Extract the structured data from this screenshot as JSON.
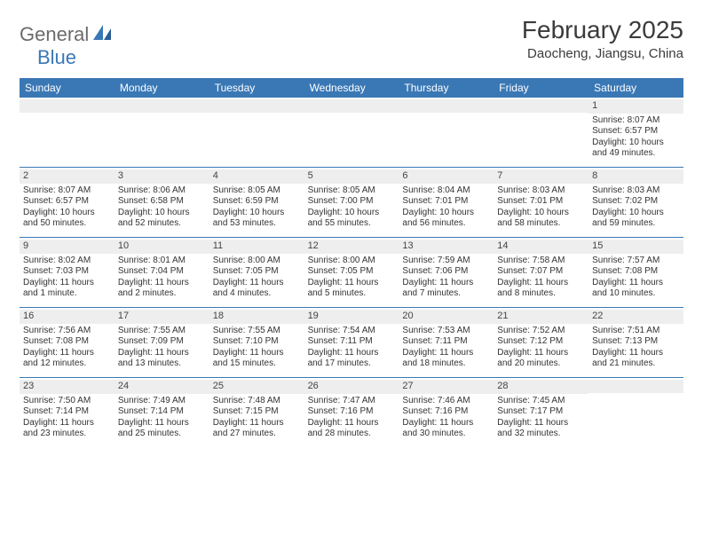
{
  "logo": {
    "text_gray": "General",
    "text_blue": "Blue"
  },
  "title": "February 2025",
  "location": "Daocheng, Jiangsu, China",
  "colors": {
    "header_bg": "#3a78b5",
    "header_text": "#ffffff",
    "daynum_bg": "#eeeeee",
    "rule": "#3a78b5",
    "body_text": "#333333",
    "logo_gray": "#6b6b6b",
    "logo_blue": "#3a78b5"
  },
  "day_names": [
    "Sunday",
    "Monday",
    "Tuesday",
    "Wednesday",
    "Thursday",
    "Friday",
    "Saturday"
  ],
  "weeks": [
    [
      {
        "day": "",
        "sunrise": "",
        "sunset": "",
        "daylight1": "",
        "daylight2": ""
      },
      {
        "day": "",
        "sunrise": "",
        "sunset": "",
        "daylight1": "",
        "daylight2": ""
      },
      {
        "day": "",
        "sunrise": "",
        "sunset": "",
        "daylight1": "",
        "daylight2": ""
      },
      {
        "day": "",
        "sunrise": "",
        "sunset": "",
        "daylight1": "",
        "daylight2": ""
      },
      {
        "day": "",
        "sunrise": "",
        "sunset": "",
        "daylight1": "",
        "daylight2": ""
      },
      {
        "day": "",
        "sunrise": "",
        "sunset": "",
        "daylight1": "",
        "daylight2": ""
      },
      {
        "day": "1",
        "sunrise": "Sunrise: 8:07 AM",
        "sunset": "Sunset: 6:57 PM",
        "daylight1": "Daylight: 10 hours",
        "daylight2": "and 49 minutes."
      }
    ],
    [
      {
        "day": "2",
        "sunrise": "Sunrise: 8:07 AM",
        "sunset": "Sunset: 6:57 PM",
        "daylight1": "Daylight: 10 hours",
        "daylight2": "and 50 minutes."
      },
      {
        "day": "3",
        "sunrise": "Sunrise: 8:06 AM",
        "sunset": "Sunset: 6:58 PM",
        "daylight1": "Daylight: 10 hours",
        "daylight2": "and 52 minutes."
      },
      {
        "day": "4",
        "sunrise": "Sunrise: 8:05 AM",
        "sunset": "Sunset: 6:59 PM",
        "daylight1": "Daylight: 10 hours",
        "daylight2": "and 53 minutes."
      },
      {
        "day": "5",
        "sunrise": "Sunrise: 8:05 AM",
        "sunset": "Sunset: 7:00 PM",
        "daylight1": "Daylight: 10 hours",
        "daylight2": "and 55 minutes."
      },
      {
        "day": "6",
        "sunrise": "Sunrise: 8:04 AM",
        "sunset": "Sunset: 7:01 PM",
        "daylight1": "Daylight: 10 hours",
        "daylight2": "and 56 minutes."
      },
      {
        "day": "7",
        "sunrise": "Sunrise: 8:03 AM",
        "sunset": "Sunset: 7:01 PM",
        "daylight1": "Daylight: 10 hours",
        "daylight2": "and 58 minutes."
      },
      {
        "day": "8",
        "sunrise": "Sunrise: 8:03 AM",
        "sunset": "Sunset: 7:02 PM",
        "daylight1": "Daylight: 10 hours",
        "daylight2": "and 59 minutes."
      }
    ],
    [
      {
        "day": "9",
        "sunrise": "Sunrise: 8:02 AM",
        "sunset": "Sunset: 7:03 PM",
        "daylight1": "Daylight: 11 hours",
        "daylight2": "and 1 minute."
      },
      {
        "day": "10",
        "sunrise": "Sunrise: 8:01 AM",
        "sunset": "Sunset: 7:04 PM",
        "daylight1": "Daylight: 11 hours",
        "daylight2": "and 2 minutes."
      },
      {
        "day": "11",
        "sunrise": "Sunrise: 8:00 AM",
        "sunset": "Sunset: 7:05 PM",
        "daylight1": "Daylight: 11 hours",
        "daylight2": "and 4 minutes."
      },
      {
        "day": "12",
        "sunrise": "Sunrise: 8:00 AM",
        "sunset": "Sunset: 7:05 PM",
        "daylight1": "Daylight: 11 hours",
        "daylight2": "and 5 minutes."
      },
      {
        "day": "13",
        "sunrise": "Sunrise: 7:59 AM",
        "sunset": "Sunset: 7:06 PM",
        "daylight1": "Daylight: 11 hours",
        "daylight2": "and 7 minutes."
      },
      {
        "day": "14",
        "sunrise": "Sunrise: 7:58 AM",
        "sunset": "Sunset: 7:07 PM",
        "daylight1": "Daylight: 11 hours",
        "daylight2": "and 8 minutes."
      },
      {
        "day": "15",
        "sunrise": "Sunrise: 7:57 AM",
        "sunset": "Sunset: 7:08 PM",
        "daylight1": "Daylight: 11 hours",
        "daylight2": "and 10 minutes."
      }
    ],
    [
      {
        "day": "16",
        "sunrise": "Sunrise: 7:56 AM",
        "sunset": "Sunset: 7:08 PM",
        "daylight1": "Daylight: 11 hours",
        "daylight2": "and 12 minutes."
      },
      {
        "day": "17",
        "sunrise": "Sunrise: 7:55 AM",
        "sunset": "Sunset: 7:09 PM",
        "daylight1": "Daylight: 11 hours",
        "daylight2": "and 13 minutes."
      },
      {
        "day": "18",
        "sunrise": "Sunrise: 7:55 AM",
        "sunset": "Sunset: 7:10 PM",
        "daylight1": "Daylight: 11 hours",
        "daylight2": "and 15 minutes."
      },
      {
        "day": "19",
        "sunrise": "Sunrise: 7:54 AM",
        "sunset": "Sunset: 7:11 PM",
        "daylight1": "Daylight: 11 hours",
        "daylight2": "and 17 minutes."
      },
      {
        "day": "20",
        "sunrise": "Sunrise: 7:53 AM",
        "sunset": "Sunset: 7:11 PM",
        "daylight1": "Daylight: 11 hours",
        "daylight2": "and 18 minutes."
      },
      {
        "day": "21",
        "sunrise": "Sunrise: 7:52 AM",
        "sunset": "Sunset: 7:12 PM",
        "daylight1": "Daylight: 11 hours",
        "daylight2": "and 20 minutes."
      },
      {
        "day": "22",
        "sunrise": "Sunrise: 7:51 AM",
        "sunset": "Sunset: 7:13 PM",
        "daylight1": "Daylight: 11 hours",
        "daylight2": "and 21 minutes."
      }
    ],
    [
      {
        "day": "23",
        "sunrise": "Sunrise: 7:50 AM",
        "sunset": "Sunset: 7:14 PM",
        "daylight1": "Daylight: 11 hours",
        "daylight2": "and 23 minutes."
      },
      {
        "day": "24",
        "sunrise": "Sunrise: 7:49 AM",
        "sunset": "Sunset: 7:14 PM",
        "daylight1": "Daylight: 11 hours",
        "daylight2": "and 25 minutes."
      },
      {
        "day": "25",
        "sunrise": "Sunrise: 7:48 AM",
        "sunset": "Sunset: 7:15 PM",
        "daylight1": "Daylight: 11 hours",
        "daylight2": "and 27 minutes."
      },
      {
        "day": "26",
        "sunrise": "Sunrise: 7:47 AM",
        "sunset": "Sunset: 7:16 PM",
        "daylight1": "Daylight: 11 hours",
        "daylight2": "and 28 minutes."
      },
      {
        "day": "27",
        "sunrise": "Sunrise: 7:46 AM",
        "sunset": "Sunset: 7:16 PM",
        "daylight1": "Daylight: 11 hours",
        "daylight2": "and 30 minutes."
      },
      {
        "day": "28",
        "sunrise": "Sunrise: 7:45 AM",
        "sunset": "Sunset: 7:17 PM",
        "daylight1": "Daylight: 11 hours",
        "daylight2": "and 32 minutes."
      },
      {
        "day": "",
        "sunrise": "",
        "sunset": "",
        "daylight1": "",
        "daylight2": ""
      }
    ]
  ]
}
